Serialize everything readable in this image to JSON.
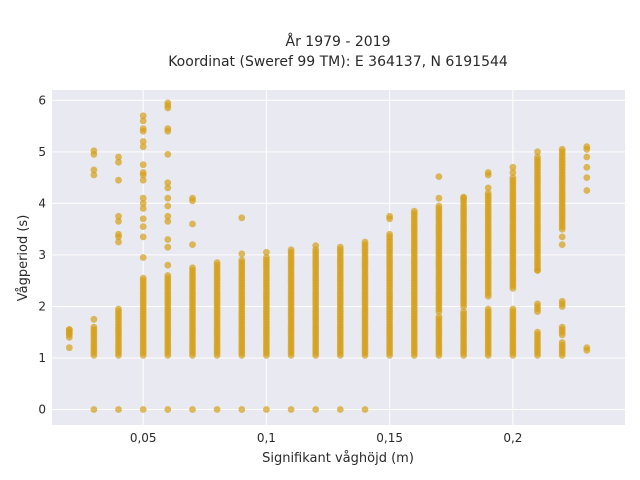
{
  "chart_data": {
    "type": "scatter",
    "title_line1": "År 1979 - 2019",
    "title_line2": "Koordinat (Sweref 99 TM): E 364137, N 6191544",
    "xlabel": "Signifikant våghöjd (m)",
    "ylabel": "Vågperiod (s)",
    "xlim": [
      0.013,
      0.2455
    ],
    "ylim": [
      -0.3,
      6.2
    ],
    "grid": true,
    "x_ticks": [
      {
        "value": 0.05,
        "label": "0,05"
      },
      {
        "value": 0.1,
        "label": "0,1"
      },
      {
        "value": 0.15,
        "label": "0,15"
      },
      {
        "value": 0.2,
        "label": "0,2"
      }
    ],
    "y_ticks": [
      {
        "value": 0,
        "label": "0"
      },
      {
        "value": 1,
        "label": "1"
      },
      {
        "value": 2,
        "label": "2"
      },
      {
        "value": 3,
        "label": "3"
      },
      {
        "value": 4,
        "label": "4"
      },
      {
        "value": 5,
        "label": "5"
      },
      {
        "value": 6,
        "label": "6"
      }
    ],
    "point_color": "#D4A017",
    "plot_bg": "#E9E9F1",
    "columns": [
      {
        "x": 0.02,
        "points": [
          1.2,
          1.48,
          1.55
        ],
        "ranges": [
          [
            1.4,
            1.55
          ]
        ]
      },
      {
        "x": 0.03,
        "points": [
          0,
          4.55,
          4.65,
          4.95,
          5.02,
          1.75
        ],
        "ranges": [
          [
            1.05,
            1.6
          ]
        ]
      },
      {
        "x": 0.04,
        "points": [
          0,
          3.25,
          3.35,
          3.4,
          3.65,
          3.75,
          4.45,
          4.8,
          4.9
        ],
        "ranges": [
          [
            1.05,
            1.95
          ]
        ]
      },
      {
        "x": 0.05,
        "points": [
          0,
          2.95,
          3.35,
          3.55,
          3.7,
          3.9,
          4.0,
          4.1,
          4.45,
          4.55,
          4.6,
          4.75,
          5.1,
          5.2,
          5.4,
          5.45,
          5.6,
          5.7
        ],
        "ranges": [
          [
            1.05,
            2.55
          ]
        ]
      },
      {
        "x": 0.06,
        "points": [
          0,
          2.8,
          3.15,
          3.3,
          3.65,
          3.75,
          3.95,
          4.1,
          4.3,
          4.4,
          4.95,
          5.4,
          5.45,
          5.85,
          5.9,
          5.95
        ],
        "ranges": [
          [
            1.05,
            2.6
          ]
        ]
      },
      {
        "x": 0.07,
        "points": [
          0,
          2.75,
          3.2,
          3.6,
          4.05,
          4.1
        ],
        "ranges": [
          [
            1.05,
            2.7
          ]
        ]
      },
      {
        "x": 0.08,
        "points": [
          0,
          2.85
        ],
        "ranges": [
          [
            1.05,
            2.8
          ]
        ]
      },
      {
        "x": 0.09,
        "points": [
          0,
          3.72,
          3.02
        ],
        "ranges": [
          [
            1.05,
            2.9
          ]
        ]
      },
      {
        "x": 0.1,
        "points": [
          0,
          3.05
        ],
        "ranges": [
          [
            1.05,
            2.98
          ]
        ]
      },
      {
        "x": 0.11,
        "points": [
          0,
          3.1
        ],
        "ranges": [
          [
            1.05,
            3.05
          ]
        ]
      },
      {
        "x": 0.12,
        "points": [
          0,
          3.18
        ],
        "ranges": [
          [
            1.05,
            3.1
          ]
        ]
      },
      {
        "x": 0.13,
        "points": [
          0,
          3.15
        ],
        "ranges": [
          [
            1.05,
            3.12
          ]
        ]
      },
      {
        "x": 0.14,
        "points": [
          0,
          3.25
        ],
        "ranges": [
          [
            1.05,
            3.22
          ]
        ]
      },
      {
        "x": 0.15,
        "points": [
          3.7,
          3.75
        ],
        "ranges": [
          [
            1.05,
            3.4
          ]
        ]
      },
      {
        "x": 0.16,
        "points": [
          3.85
        ],
        "ranges": [
          [
            1.05,
            1.75
          ],
          [
            1.8,
            3.8
          ]
        ]
      },
      {
        "x": 0.17,
        "points": [
          4.1,
          4.52
        ],
        "ranges": [
          [
            1.05,
            1.8
          ],
          [
            1.9,
            3.95
          ]
        ]
      },
      {
        "x": 0.18,
        "points": [
          4.12
        ],
        "ranges": [
          [
            1.05,
            1.9
          ],
          [
            2.0,
            4.1
          ]
        ]
      },
      {
        "x": 0.19,
        "points": [
          4.3,
          4.55,
          4.6
        ],
        "ranges": [
          [
            1.05,
            1.95
          ],
          [
            2.2,
            4.2
          ]
        ]
      },
      {
        "x": 0.2,
        "points": [
          4.6,
          4.7
        ],
        "ranges": [
          [
            1.05,
            1.95
          ],
          [
            2.35,
            4.5
          ]
        ]
      },
      {
        "x": 0.21,
        "points": [
          5.0,
          2.7
        ],
        "ranges": [
          [
            1.05,
            1.5
          ],
          [
            1.9,
            2.05
          ],
          [
            2.7,
            4.9
          ]
        ]
      },
      {
        "x": 0.22,
        "points": [
          5.05,
          3.2,
          3.35
        ],
        "ranges": [
          [
            1.05,
            1.3
          ],
          [
            1.45,
            1.6
          ],
          [
            2.0,
            2.1
          ],
          [
            3.5,
            5.0
          ]
        ]
      },
      {
        "x": 0.23,
        "points": [
          1.15,
          1.2,
          4.25,
          4.5,
          4.7,
          4.9,
          5.05,
          5.1
        ],
        "ranges": []
      }
    ]
  }
}
